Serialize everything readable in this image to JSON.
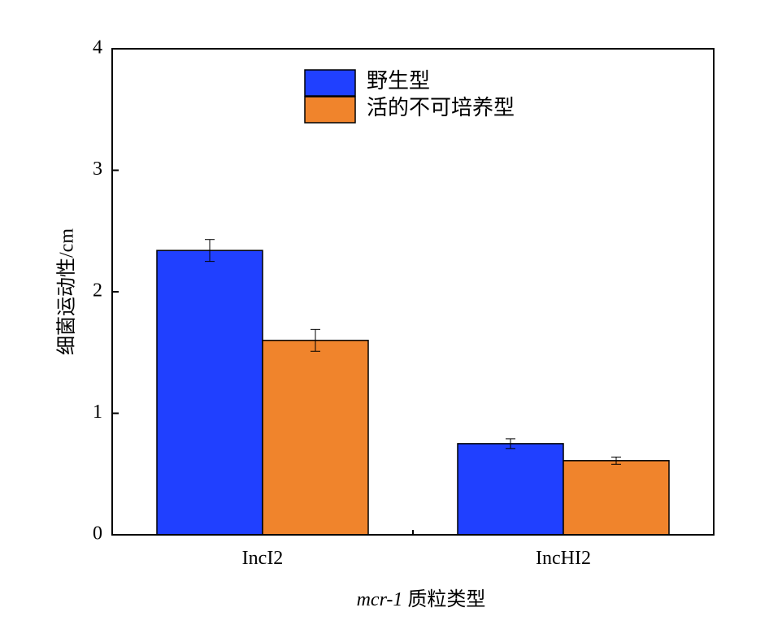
{
  "chart_data": {
    "type": "bar",
    "categories": [
      "IncI2",
      "IncHI2"
    ],
    "series": [
      {
        "name": "野生型",
        "color": "#2040ff",
        "values": [
          2.34,
          0.75
        ],
        "errors": [
          0.09,
          0.04
        ]
      },
      {
        "name": "活的不可培养型",
        "color": "#f0842c",
        "values": [
          1.6,
          0.61
        ],
        "errors": [
          0.09,
          0.03
        ]
      }
    ],
    "ylim": [
      0,
      4
    ],
    "yticks": [
      "0",
      "1",
      "2",
      "3",
      "4"
    ],
    "ylabel": "细菌运动性/cm",
    "xlabel_italic": "mcr-1",
    "xlabel_rest": " 质粒类型",
    "legend_position": "top-center",
    "grid": false
  }
}
